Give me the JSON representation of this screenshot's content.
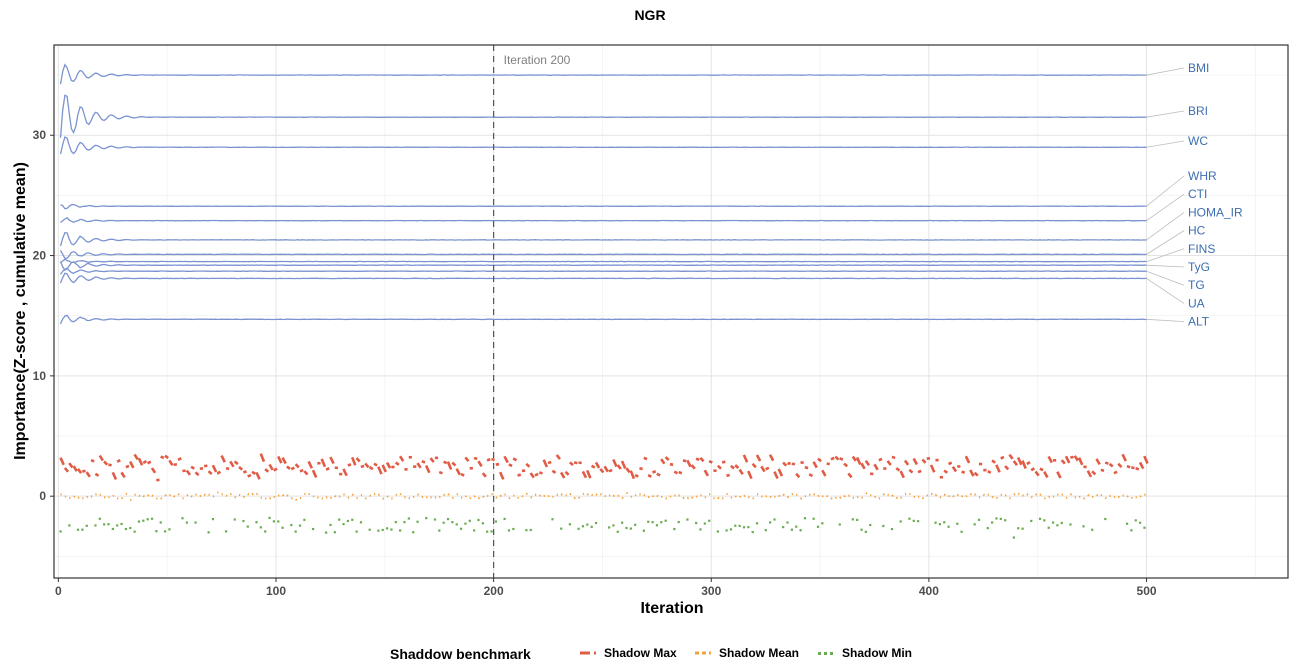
{
  "chart_data": {
    "type": "line",
    "title": "NGR",
    "xlabel": "Iteration",
    "ylabel": "Importance(Z-score , cumulative mean)",
    "xlim": [
      -2,
      565
    ],
    "ylim": [
      -6.8,
      37.5
    ],
    "x_ticks": [
      0,
      100,
      200,
      300,
      400,
      500
    ],
    "y_ticks": [
      0,
      10,
      20,
      30
    ],
    "grid": true,
    "reference_line": {
      "x": 200,
      "label": "Iteration 200"
    },
    "iterations": 500,
    "series": [
      {
        "name": "BMI",
        "final": 35.0,
        "start": 33.8
      },
      {
        "name": "BRI",
        "final": 31.5,
        "start": 28.6
      },
      {
        "name": "WC",
        "final": 29.0,
        "start": 27.8
      },
      {
        "name": "WHR",
        "final": 24.1,
        "start": 24.3
      },
      {
        "name": "CTI",
        "final": 22.9,
        "start": 22.6
      },
      {
        "name": "HOMA_IR",
        "final": 21.3,
        "start": 20.4
      },
      {
        "name": "HC",
        "final": 20.1,
        "start": 20.6
      },
      {
        "name": "FINS",
        "final": 19.5,
        "start": 19.3
      },
      {
        "name": "TyG",
        "final": 19.2,
        "start": 19.8
      },
      {
        "name": "TG",
        "final": 18.7,
        "start": 18.4
      },
      {
        "name": "UA",
        "final": 18.1,
        "start": 17.4
      },
      {
        "name": "ALT",
        "final": 14.7,
        "start": 14.2
      }
    ],
    "line_color": "#7b93d1",
    "label_color": "#3c6fb0",
    "shadow": {
      "legend_title": "Shaddow benchmark",
      "series": [
        {
          "name": "Shadow Max",
          "center": 2.6,
          "spread": 0.8,
          "color": "#e15b45"
        },
        {
          "name": "Shadow Mean",
          "center": 0.0,
          "spread": 0.2,
          "color": "#f4a23c"
        },
        {
          "name": "Shadow Min",
          "center": -2.4,
          "spread": 0.6,
          "color": "#6aab4f"
        }
      ]
    }
  }
}
